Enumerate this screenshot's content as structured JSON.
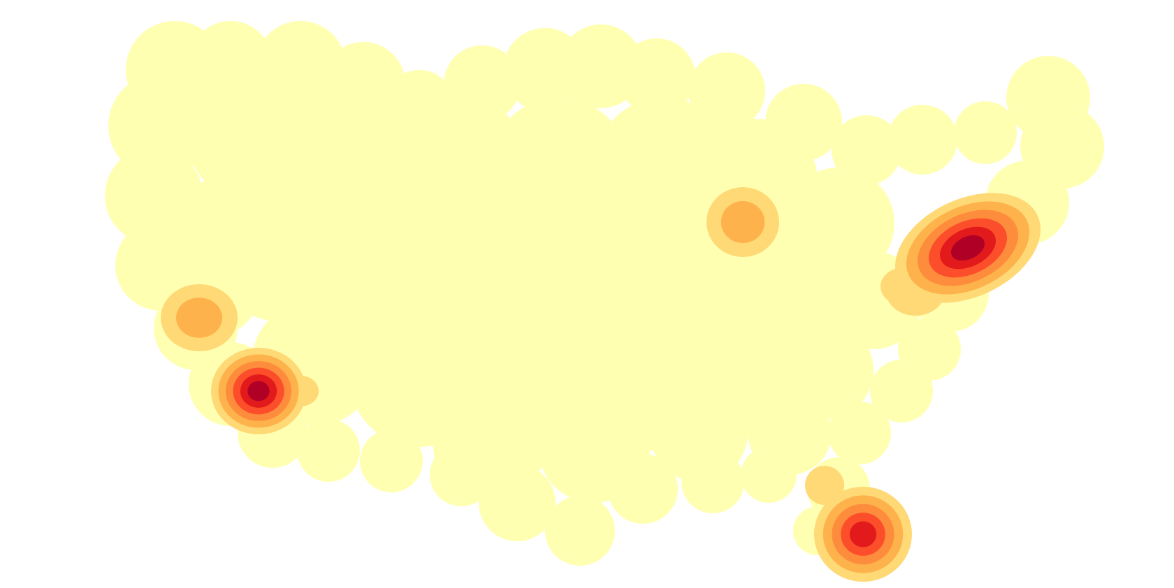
{
  "map": {
    "kind": "kernel-density-heatmap",
    "region": "contiguous-united-states",
    "levels": 7,
    "color_scale": [
      "#ffffb2",
      "#fed976",
      "#feb24c",
      "#fd8d3c",
      "#fc4e2a",
      "#e31a1c",
      "#b10026"
    ],
    "hotspots": [
      {
        "id": "northeast",
        "intensity": 7
      },
      {
        "id": "southern-california",
        "intensity": 7
      },
      {
        "id": "south-florida",
        "intensity": 6
      },
      {
        "id": "northern-california",
        "intensity": 3
      },
      {
        "id": "midwest",
        "intensity": 3
      }
    ]
  }
}
